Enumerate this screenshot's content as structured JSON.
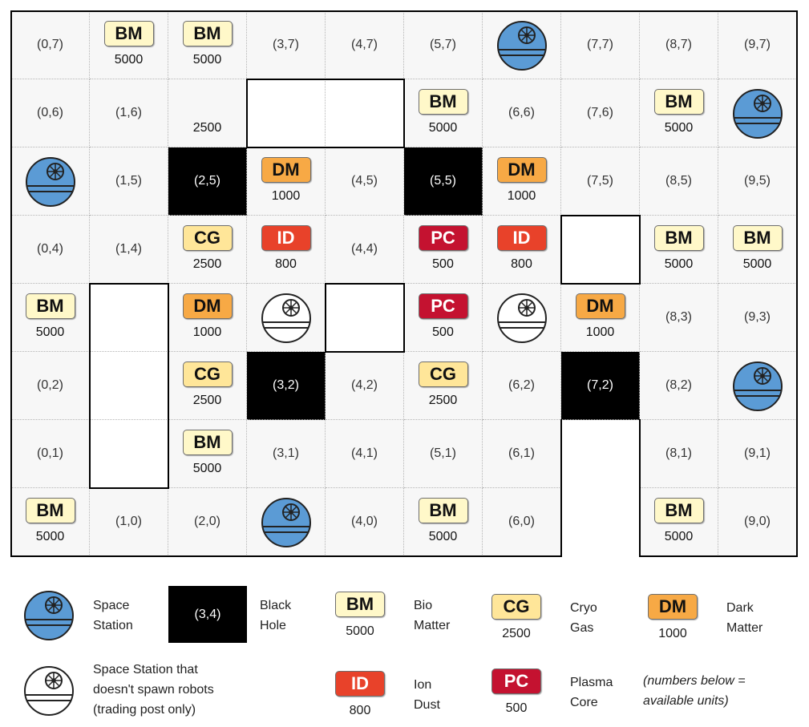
{
  "colors": {
    "station_blue": "#5b9bd5",
    "BM": "#fff8c9",
    "CG": "#ffe699",
    "DM": "#f7a945",
    "ID": "#e8422a",
    "PC": "#c41230"
  },
  "resources": {
    "BM": {
      "code": "BM",
      "name_line1": "Bio",
      "name_line2": "Matter",
      "amount": "5000",
      "text_color": "#111111"
    },
    "CG": {
      "code": "CG",
      "name_line1": "Cryo",
      "name_line2": "Gas",
      "amount": "2500",
      "text_color": "#111111"
    },
    "DM": {
      "code": "DM",
      "name_line1": "Dark",
      "name_line2": "Matter",
      "amount": "1000",
      "text_color": "#111111"
    },
    "ID": {
      "code": "ID",
      "name_line1": "Ion",
      "name_line2": "Dust",
      "amount": "800",
      "text_color": "#ffffff"
    },
    "PC": {
      "code": "PC",
      "name_line1": "Plasma",
      "name_line2": "Core",
      "amount": "500",
      "text_color": "#ffffff"
    }
  },
  "cells": [
    {
      "col": 0,
      "row": 7,
      "kind": "coord",
      "label": "(0,7)"
    },
    {
      "col": 1,
      "row": 7,
      "kind": "resource",
      "res": "BM",
      "amount": "5000"
    },
    {
      "col": 2,
      "row": 7,
      "kind": "resource",
      "res": "BM",
      "amount": "5000"
    },
    {
      "col": 3,
      "row": 7,
      "kind": "coord",
      "label": "(3,7)"
    },
    {
      "col": 4,
      "row": 7,
      "kind": "coord",
      "label": "(4,7)"
    },
    {
      "col": 5,
      "row": 7,
      "kind": "coord",
      "label": "(5,7)"
    },
    {
      "col": 6,
      "row": 7,
      "kind": "station",
      "spawns": true
    },
    {
      "col": 7,
      "row": 7,
      "kind": "coord",
      "label": "(7,7)"
    },
    {
      "col": 8,
      "row": 7,
      "kind": "coord",
      "label": "(8,7)"
    },
    {
      "col": 9,
      "row": 7,
      "kind": "coord",
      "label": "(9,7)"
    },
    {
      "col": 0,
      "row": 6,
      "kind": "coord",
      "label": "(0,6)"
    },
    {
      "col": 1,
      "row": 6,
      "kind": "coord",
      "label": "(1,6)"
    },
    {
      "col": 2,
      "row": 6,
      "kind": "amount_only",
      "amount": "2500"
    },
    {
      "col": 3,
      "row": 6,
      "kind": "empty"
    },
    {
      "col": 4,
      "row": 6,
      "kind": "empty"
    },
    {
      "col": 5,
      "row": 6,
      "kind": "resource",
      "res": "BM",
      "amount": "5000"
    },
    {
      "col": 6,
      "row": 6,
      "kind": "coord",
      "label": "(6,6)"
    },
    {
      "col": 7,
      "row": 6,
      "kind": "coord",
      "label": "(7,6)"
    },
    {
      "col": 8,
      "row": 6,
      "kind": "resource",
      "res": "BM",
      "amount": "5000"
    },
    {
      "col": 9,
      "row": 6,
      "kind": "station",
      "spawns": true
    },
    {
      "col": 0,
      "row": 5,
      "kind": "station",
      "spawns": true
    },
    {
      "col": 1,
      "row": 5,
      "kind": "coord",
      "label": "(1,5)"
    },
    {
      "col": 2,
      "row": 5,
      "kind": "blackhole",
      "label": "(2,5)"
    },
    {
      "col": 3,
      "row": 5,
      "kind": "resource",
      "res": "DM",
      "amount": "1000"
    },
    {
      "col": 4,
      "row": 5,
      "kind": "coord",
      "label": "(4,5)"
    },
    {
      "col": 5,
      "row": 5,
      "kind": "blackhole",
      "label": "(5,5)"
    },
    {
      "col": 6,
      "row": 5,
      "kind": "resource",
      "res": "DM",
      "amount": "1000"
    },
    {
      "col": 7,
      "row": 5,
      "kind": "coord",
      "label": "(7,5)"
    },
    {
      "col": 8,
      "row": 5,
      "kind": "coord",
      "label": "(8,5)"
    },
    {
      "col": 9,
      "row": 5,
      "kind": "coord",
      "label": "(9,5)"
    },
    {
      "col": 0,
      "row": 4,
      "kind": "coord",
      "label": "(0,4)"
    },
    {
      "col": 1,
      "row": 4,
      "kind": "coord",
      "label": "(1,4)"
    },
    {
      "col": 2,
      "row": 4,
      "kind": "resource",
      "res": "CG",
      "amount": "2500"
    },
    {
      "col": 3,
      "row": 4,
      "kind": "resource",
      "res": "ID",
      "amount": "800"
    },
    {
      "col": 4,
      "row": 4,
      "kind": "coord",
      "label": "(4,4)"
    },
    {
      "col": 5,
      "row": 4,
      "kind": "resource",
      "res": "PC",
      "amount": "500"
    },
    {
      "col": 6,
      "row": 4,
      "kind": "resource",
      "res": "ID",
      "amount": "800"
    },
    {
      "col": 7,
      "row": 4,
      "kind": "empty"
    },
    {
      "col": 8,
      "row": 4,
      "kind": "resource",
      "res": "BM",
      "amount": "5000"
    },
    {
      "col": 9,
      "row": 4,
      "kind": "resource",
      "res": "BM",
      "amount": "5000"
    },
    {
      "col": 0,
      "row": 3,
      "kind": "resource",
      "res": "BM",
      "amount": "5000"
    },
    {
      "col": 1,
      "row": 3,
      "kind": "empty"
    },
    {
      "col": 2,
      "row": 3,
      "kind": "resource",
      "res": "DM",
      "amount": "1000"
    },
    {
      "col": 3,
      "row": 3,
      "kind": "station",
      "spawns": false
    },
    {
      "col": 4,
      "row": 3,
      "kind": "empty"
    },
    {
      "col": 5,
      "row": 3,
      "kind": "resource",
      "res": "PC",
      "amount": "500"
    },
    {
      "col": 6,
      "row": 3,
      "kind": "station",
      "spawns": false
    },
    {
      "col": 7,
      "row": 3,
      "kind": "resource",
      "res": "DM",
      "amount": "1000"
    },
    {
      "col": 8,
      "row": 3,
      "kind": "coord",
      "label": "(8,3)"
    },
    {
      "col": 9,
      "row": 3,
      "kind": "coord",
      "label": "(9,3)"
    },
    {
      "col": 0,
      "row": 2,
      "kind": "coord",
      "label": "(0,2)"
    },
    {
      "col": 1,
      "row": 2,
      "kind": "empty"
    },
    {
      "col": 2,
      "row": 2,
      "kind": "resource",
      "res": "CG",
      "amount": "2500"
    },
    {
      "col": 3,
      "row": 2,
      "kind": "blackhole",
      "label": "(3,2)"
    },
    {
      "col": 4,
      "row": 2,
      "kind": "coord",
      "label": "(4,2)"
    },
    {
      "col": 5,
      "row": 2,
      "kind": "resource",
      "res": "CG",
      "amount": "2500"
    },
    {
      "col": 6,
      "row": 2,
      "kind": "coord",
      "label": "(6,2)"
    },
    {
      "col": 7,
      "row": 2,
      "kind": "blackhole",
      "label": "(7,2)"
    },
    {
      "col": 8,
      "row": 2,
      "kind": "coord",
      "label": "(8,2)"
    },
    {
      "col": 9,
      "row": 2,
      "kind": "station",
      "spawns": true
    },
    {
      "col": 0,
      "row": 1,
      "kind": "coord",
      "label": "(0,1)"
    },
    {
      "col": 1,
      "row": 1,
      "kind": "empty"
    },
    {
      "col": 2,
      "row": 1,
      "kind": "resource",
      "res": "BM",
      "amount": "5000"
    },
    {
      "col": 3,
      "row": 1,
      "kind": "coord",
      "label": "(3,1)"
    },
    {
      "col": 4,
      "row": 1,
      "kind": "coord",
      "label": "(4,1)"
    },
    {
      "col": 5,
      "row": 1,
      "kind": "coord",
      "label": "(5,1)"
    },
    {
      "col": 6,
      "row": 1,
      "kind": "coord",
      "label": "(6,1)"
    },
    {
      "col": 8,
      "row": 1,
      "kind": "coord",
      "label": "(8,1)"
    },
    {
      "col": 9,
      "row": 1,
      "kind": "coord",
      "label": "(9,1)"
    },
    {
      "col": 0,
      "row": 0,
      "kind": "resource",
      "res": "BM",
      "amount": "5000"
    },
    {
      "col": 1,
      "row": 0,
      "kind": "coord",
      "label": "(1,0)"
    },
    {
      "col": 2,
      "row": 0,
      "kind": "coord",
      "label": "(2,0)"
    },
    {
      "col": 3,
      "row": 0,
      "kind": "station",
      "spawns": true
    },
    {
      "col": 4,
      "row": 0,
      "kind": "coord",
      "label": "(4,0)"
    },
    {
      "col": 5,
      "row": 0,
      "kind": "resource",
      "res": "BM",
      "amount": "5000"
    },
    {
      "col": 6,
      "row": 0,
      "kind": "coord",
      "label": "(6,0)"
    },
    {
      "col": 8,
      "row": 0,
      "kind": "resource",
      "res": "BM",
      "amount": "5000"
    },
    {
      "col": 9,
      "row": 0,
      "kind": "coord",
      "label": "(9,0)"
    }
  ],
  "legend": {
    "space_station_line1": "Space",
    "space_station_line2": "Station",
    "black_hole_sample": "(3,4)",
    "black_hole_line1": "Black",
    "black_hole_line2": "Hole",
    "trading_line1": "Space Station that",
    "trading_line2": "doesn't spawn robots",
    "trading_line3": "(trading post only)",
    "note_line1": "(numbers below =",
    "note_line2": "available units)"
  }
}
